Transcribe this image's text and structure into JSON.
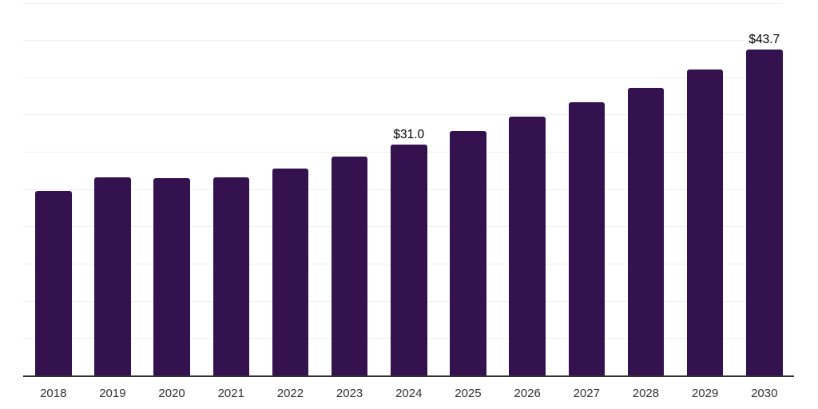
{
  "chart_data": {
    "type": "bar",
    "title": "",
    "xlabel": "",
    "ylabel": "",
    "categories": [
      "2018",
      "2019",
      "2020",
      "2021",
      "2022",
      "2023",
      "2024",
      "2025",
      "2026",
      "2027",
      "2028",
      "2029",
      "2030"
    ],
    "values": [
      24.8,
      26.6,
      26.5,
      26.6,
      27.8,
      29.4,
      31.0,
      32.8,
      34.7,
      36.7,
      38.6,
      41.1,
      43.7
    ],
    "bar_labels": [
      {
        "category": "2024",
        "label": "$31.0"
      },
      {
        "category": "2030",
        "label": "$43.7"
      }
    ],
    "unit_prefix": "$",
    "ylim": [
      0,
      50
    ],
    "gridline_step": 5,
    "grid": "horizontal",
    "y_axis_labels_shown": false,
    "legend_position": "none"
  },
  "colors": {
    "background": "#ffffff",
    "bar": "#341250",
    "axis_line": "#333333",
    "gridline": "#f0f0f0",
    "tick_label": "#333333",
    "value_label": "#000000"
  }
}
